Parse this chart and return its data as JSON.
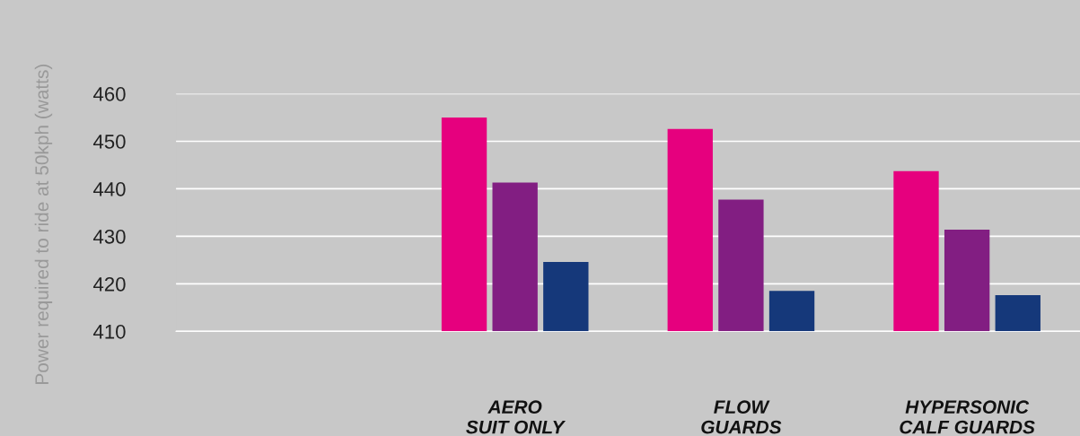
{
  "chart_data": {
    "type": "bar",
    "ylabel": "Power required to ride at 50kph (watts)",
    "categories": [
      null,
      "AERO\nSUIT ONLY",
      "FLOW\nGUARDS",
      "HYPERSONIC\nCALF GUARDS"
    ],
    "series": [
      {
        "color": "#e6007e",
        "values": [
          null,
          455,
          452.6,
          443.7
        ]
      },
      {
        "color": "#821e82",
        "values": [
          null,
          441.3,
          437.7,
          431.4
        ]
      },
      {
        "color": "#15387a",
        "values": [
          null,
          424.6,
          418.5,
          417.6
        ]
      }
    ],
    "ylim": [
      410,
      460
    ],
    "yticks": [
      410,
      420,
      430,
      440,
      450,
      460
    ],
    "grid": "y",
    "legend": false
  }
}
